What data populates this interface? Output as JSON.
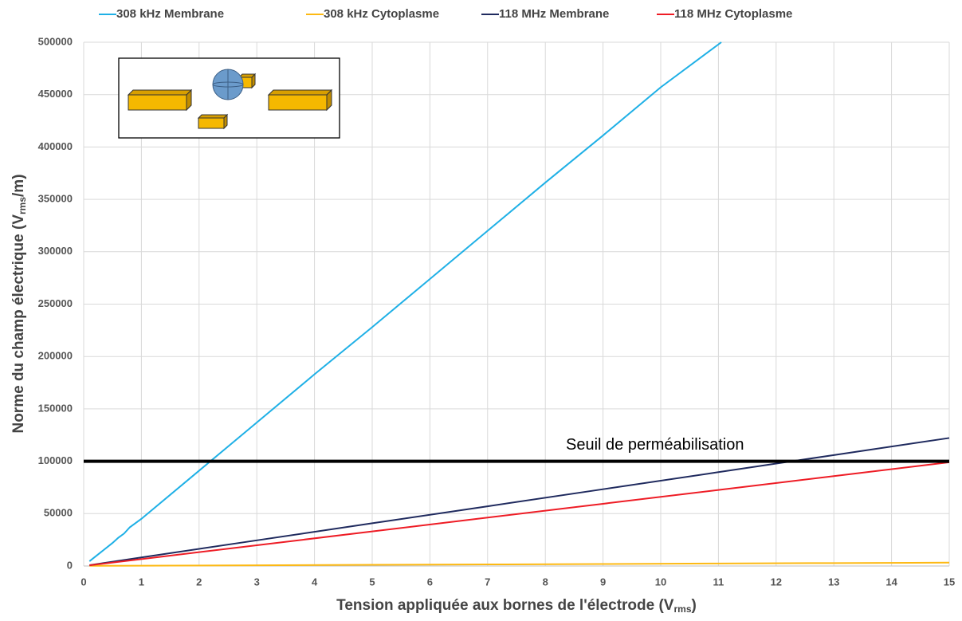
{
  "chart_data": {
    "type": "line",
    "x_label": [
      "Tension appliquée aux bornes de l'électrode (V",
      "rms",
      ")"
    ],
    "y_label": [
      "Norme du champ électrique (V",
      "rms",
      "/m)"
    ],
    "xlim": [
      0,
      15
    ],
    "xticks": [
      0,
      1,
      2,
      3,
      4,
      5,
      6,
      7,
      8,
      9,
      10,
      11,
      12,
      13,
      14,
      15
    ],
    "ylim": [
      0,
      500000
    ],
    "yticks": [
      0,
      50000,
      100000,
      150000,
      200000,
      250000,
      300000,
      350000,
      400000,
      450000,
      500000
    ],
    "grid": true,
    "legend": "top",
    "series": [
      {
        "name": "308 kHz Membrane",
        "color": "#1fb0e6",
        "x": [
          0.1,
          0.5,
          0.6,
          0.7,
          0.8,
          1,
          2,
          3,
          4,
          5,
          6,
          7,
          8,
          9,
          10,
          11.05
        ],
        "values": [
          4500,
          22000,
          27000,
          31000,
          37000,
          45000,
          91000,
          137000,
          183000,
          228000,
          274000,
          320000,
          366000,
          411000,
          457000,
          500000
        ]
      },
      {
        "name": "308 kHz Cytoplasme",
        "color": "#fdb913",
        "x": [
          0.1,
          1,
          3,
          5,
          7,
          9,
          11,
          13,
          15
        ],
        "values": [
          200,
          300,
          700,
          1100,
          1500,
          1900,
          2400,
          2800,
          3200
        ]
      },
      {
        "name": "118 MHz Membrane",
        "color": "#1f2a5e",
        "x": [
          0.1,
          1,
          3,
          5,
          7,
          9,
          11,
          13,
          15
        ],
        "values": [
          800,
          8150,
          24500,
          40800,
          57000,
          73300,
          89600,
          105900,
          122200
        ]
      },
      {
        "name": "118 MHz Cytoplasme",
        "color": "#ee1c25",
        "x": [
          0.1,
          1,
          3,
          5,
          7,
          9,
          11,
          13,
          15
        ],
        "values": [
          660,
          6600,
          19800,
          33000,
          46200,
          59400,
          72600,
          85800,
          99000
        ]
      }
    ],
    "threshold": {
      "value": 100000,
      "label": "Seuil de perméabilisation",
      "color": "#000000"
    }
  }
}
